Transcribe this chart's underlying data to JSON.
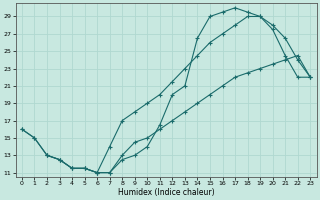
{
  "xlabel": "Humidex (Indice chaleur)",
  "ylabel": "",
  "xlim": [
    -0.5,
    23.5
  ],
  "ylim": [
    10.5,
    30.5
  ],
  "xticks": [
    0,
    1,
    2,
    3,
    4,
    5,
    6,
    7,
    8,
    9,
    10,
    11,
    12,
    13,
    14,
    15,
    16,
    17,
    18,
    19,
    20,
    21,
    22,
    23
  ],
  "yticks": [
    11,
    13,
    15,
    17,
    19,
    21,
    23,
    25,
    27,
    29
  ],
  "bg_color": "#c8e8e0",
  "line_color": "#1a6b6b",
  "grid_color": "#b0d8d0",
  "line1_x": [
    0,
    1,
    2,
    3,
    4,
    5,
    6,
    7,
    8,
    9,
    10,
    11,
    12,
    13,
    14,
    15,
    16,
    17,
    18,
    19,
    20,
    21,
    22,
    23
  ],
  "line1_y": [
    16,
    15,
    13,
    12.5,
    11.5,
    11.5,
    11,
    11,
    12.5,
    13,
    14,
    16.5,
    20,
    21,
    26.5,
    29,
    29.5,
    30,
    29.5,
    29,
    27.5,
    24.5,
    22,
    22
  ],
  "line2_x": [
    0,
    1,
    2,
    3,
    4,
    5,
    6,
    7,
    8,
    9,
    10,
    11,
    12,
    13,
    14,
    15,
    16,
    17,
    18,
    19,
    20,
    21,
    22,
    23
  ],
  "line2_y": [
    16,
    15,
    13,
    12.5,
    11.5,
    11.5,
    11,
    14,
    17,
    18,
    19,
    20,
    21.5,
    23,
    24.5,
    26,
    27,
    28,
    29,
    29,
    28,
    26.5,
    24,
    22
  ],
  "line3_x": [
    2,
    3,
    4,
    5,
    6,
    7,
    8,
    9,
    10,
    11,
    12,
    13,
    14,
    15,
    16,
    17,
    18,
    19,
    20,
    21,
    22,
    23
  ],
  "line3_y": [
    13,
    12.5,
    11.5,
    11.5,
    11,
    11,
    13,
    14.5,
    15,
    16,
    17,
    18,
    19,
    20,
    21,
    22,
    22.5,
    23,
    23.5,
    24,
    24.5,
    22
  ]
}
